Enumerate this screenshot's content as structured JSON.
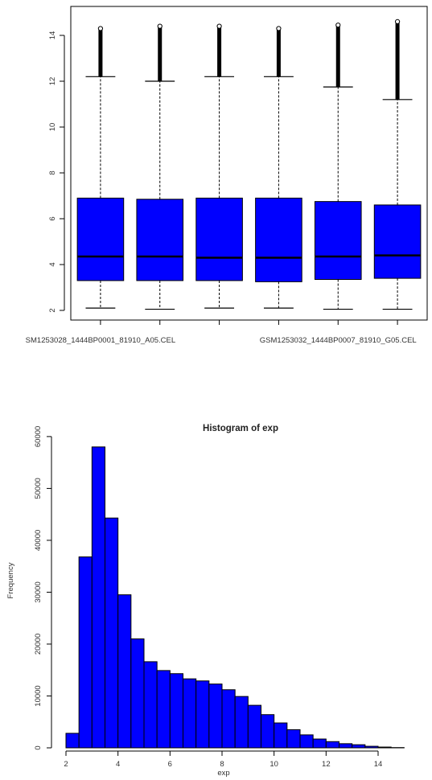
{
  "chart_data": [
    {
      "type": "box",
      "title": "",
      "xlabel": "",
      "ylabel": "",
      "ylim": [
        1.7,
        14.9
      ],
      "y_ticks": [
        2,
        4,
        6,
        8,
        10,
        12,
        14
      ],
      "box_color": "#0000ff",
      "x_tick_labels": [
        {
          "box": 1,
          "label": "SM1253028_1444BP0001_81910_A05.CEL"
        },
        {
          "box": 5,
          "label": "GSM1253032_1444BP0007_81910_G05.CEL"
        }
      ],
      "boxes": [
        {
          "whisker_low": 2.1,
          "q1": 3.3,
          "median": 4.35,
          "q3": 6.9,
          "whisker_high": 12.2,
          "outlier_max": 14.3
        },
        {
          "whisker_low": 2.05,
          "q1": 3.3,
          "median": 4.35,
          "q3": 6.85,
          "whisker_high": 12.0,
          "outlier_max": 14.4
        },
        {
          "whisker_low": 2.1,
          "q1": 3.3,
          "median": 4.3,
          "q3": 6.9,
          "whisker_high": 12.2,
          "outlier_max": 14.4
        },
        {
          "whisker_low": 2.1,
          "q1": 3.25,
          "median": 4.3,
          "q3": 6.9,
          "whisker_high": 12.2,
          "outlier_max": 14.3
        },
        {
          "whisker_low": 2.05,
          "q1": 3.35,
          "median": 4.35,
          "q3": 6.75,
          "whisker_high": 11.75,
          "outlier_max": 14.45
        },
        {
          "whisker_low": 2.05,
          "q1": 3.4,
          "median": 4.4,
          "q3": 6.6,
          "whisker_high": 11.2,
          "outlier_max": 14.6
        }
      ]
    },
    {
      "type": "bar",
      "title": "Histogram of exp",
      "xlabel": "exp",
      "ylabel": "Frequency",
      "xlim": [
        2,
        15
      ],
      "ylim": [
        0,
        62000
      ],
      "x_ticks": [
        2,
        4,
        6,
        8,
        10,
        12,
        14
      ],
      "y_ticks": [
        0,
        10000,
        20000,
        30000,
        40000,
        50000,
        60000
      ],
      "bar_color": "#0000ff",
      "bin_width": 0.5,
      "bin_starts": [
        2,
        2.5,
        3,
        3.5,
        4,
        4.5,
        5,
        5.5,
        6,
        6.5,
        7,
        7.5,
        8,
        8.5,
        9,
        9.5,
        10,
        10.5,
        11,
        11.5,
        12,
        12.5,
        13,
        13.5,
        14,
        14.5
      ],
      "values": [
        2800,
        36800,
        58000,
        44300,
        29500,
        21000,
        16600,
        14900,
        14300,
        13300,
        12900,
        12300,
        11200,
        9900,
        8200,
        6400,
        4800,
        3500,
        2500,
        1700,
        1200,
        800,
        600,
        300,
        150,
        50
      ]
    }
  ]
}
